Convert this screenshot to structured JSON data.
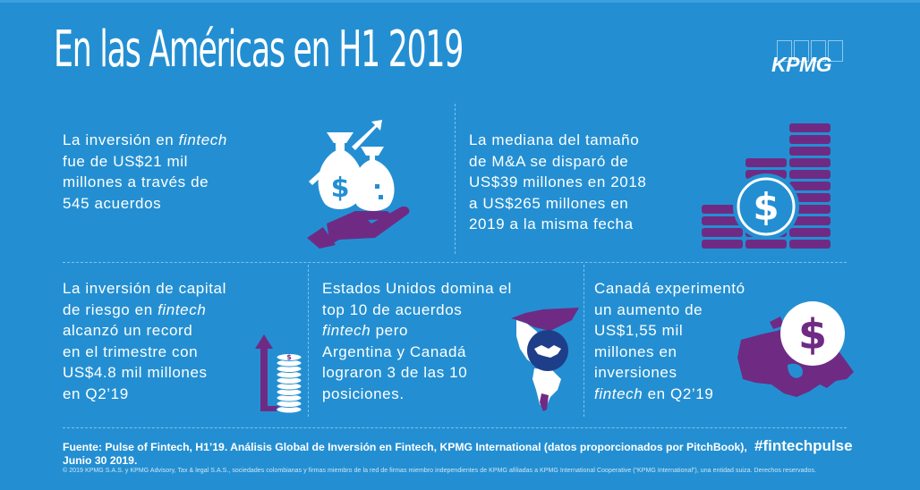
{
  "header": {
    "title": "En las Américas en H1 2019",
    "logo": "KPMG"
  },
  "colors": {
    "background": "#238fd2",
    "accent_purple": "#6f2b84",
    "navy": "#1f3e8a",
    "text": "#ffffff"
  },
  "panels": [
    {
      "lines": [
        "La inversión en ",
        "fintech",
        "fue de US$21 mil",
        "millones a través de",
        "545 acuerdos"
      ],
      "icon": "money-bags-hand-icon"
    },
    {
      "lines": [
        "La mediana del tamaño",
        "de M&A se disparó de",
        "US$39 millones en 2018",
        "a US$265 millones en",
        "2019 a la misma fecha"
      ],
      "icon": "coin-stacks-dollar-icon"
    },
    {
      "lines": [
        "La inversión de capital",
        "de riesgo en ",
        "fintech",
        "alcanzó un record",
        "en el trimestre con",
        "US$4.8 mil millones",
        "en Q2’19"
      ],
      "icon": "rising-coin-stack-icon"
    },
    {
      "lines": [
        "Estados Unidos domina el",
        "top 10 de acuerdos",
        "fintech",
        " pero",
        "Argentina y Canadá",
        "lograron 3 de las 10",
        "posiciones."
      ],
      "icon": "americas-handshake-icon"
    },
    {
      "lines": [
        "Canadá experimentó",
        "un aumento de",
        "US$1,55 mil",
        "millones en",
        "inversiones",
        "fintech",
        " en Q2’19"
      ],
      "icon": "canada-dollar-icon"
    }
  ],
  "footer": {
    "source_line1": "Fuente: Pulse of Fintech, H1’19. Análisis Global de Inversión en Fintech, KPMG International (datos proporcionados por PitchBook),",
    "source_line2": "Junio 30 2019.",
    "hashtag": "#fintechpulse",
    "copyright": "© 2019 KPMG S.A.S. y KPMG Advisory, Tax & legal S.A.S., sociedades colombianas y firmas miembro de la red de firmas miembro independientes de KPMG afiliadas a KPMG International Cooperative (“KPMG International”), una entidad suiza. Derechos reservados."
  }
}
